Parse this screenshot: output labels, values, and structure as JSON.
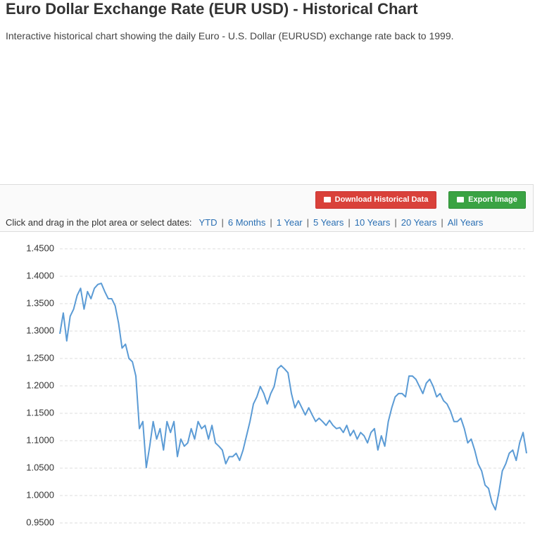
{
  "header": {
    "title": "Euro Dollar Exchange Rate (EUR USD) - Historical Chart",
    "subtitle": "Interactive historical chart showing the daily Euro - U.S. Dollar (EURUSD) exchange rate back to 1999."
  },
  "toolbar": {
    "download_button": "Download Historical Data",
    "export_button": "Export Image",
    "range_label": "Click and drag in the plot area or select dates:",
    "separator": "|",
    "range_options": [
      "YTD",
      "6 Months",
      "1 Year",
      "5 Years",
      "10 Years",
      "20 Years",
      "All Years"
    ]
  },
  "chart_data": {
    "type": "line",
    "ylim": [
      0.95,
      1.45
    ],
    "yticks": [
      {
        "value": 1.45,
        "label": "1.4500"
      },
      {
        "value": 1.4,
        "label": "1.4000"
      },
      {
        "value": 1.35,
        "label": "1.3500"
      },
      {
        "value": 1.3,
        "label": "1.3000"
      },
      {
        "value": 1.25,
        "label": "1.2500"
      },
      {
        "value": 1.2,
        "label": "1.2000"
      },
      {
        "value": 1.15,
        "label": "1.1500"
      },
      {
        "value": 1.1,
        "label": "1.1000"
      },
      {
        "value": 1.05,
        "label": "1.0500"
      },
      {
        "value": 1.0,
        "label": "1.0000"
      },
      {
        "value": 0.95,
        "label": "0.9500"
      }
    ],
    "grid": true,
    "color": "#5b9bd5",
    "values": [
      1.295,
      1.333,
      1.282,
      1.327,
      1.34,
      1.365,
      1.378,
      1.34,
      1.372,
      1.359,
      1.378,
      1.385,
      1.387,
      1.372,
      1.359,
      1.359,
      1.346,
      1.314,
      1.269,
      1.276,
      1.25,
      1.244,
      1.218,
      1.122,
      1.135,
      1.051,
      1.09,
      1.135,
      1.103,
      1.122,
      1.083,
      1.135,
      1.115,
      1.135,
      1.071,
      1.103,
      1.09,
      1.096,
      1.122,
      1.103,
      1.135,
      1.122,
      1.128,
      1.103,
      1.128,
      1.096,
      1.09,
      1.083,
      1.058,
      1.071,
      1.071,
      1.077,
      1.064,
      1.083,
      1.109,
      1.135,
      1.167,
      1.18,
      1.199,
      1.186,
      1.167,
      1.186,
      1.199,
      1.231,
      1.237,
      1.231,
      1.224,
      1.186,
      1.16,
      1.173,
      1.16,
      1.147,
      1.16,
      1.147,
      1.135,
      1.141,
      1.135,
      1.128,
      1.137,
      1.128,
      1.122,
      1.124,
      1.115,
      1.128,
      1.109,
      1.119,
      1.103,
      1.115,
      1.109,
      1.096,
      1.115,
      1.122,
      1.083,
      1.109,
      1.09,
      1.135,
      1.16,
      1.18,
      1.186,
      1.186,
      1.18,
      1.218,
      1.218,
      1.212,
      1.199,
      1.186,
      1.205,
      1.212,
      1.199,
      1.18,
      1.186,
      1.173,
      1.167,
      1.154,
      1.135,
      1.135,
      1.141,
      1.122,
      1.096,
      1.103,
      1.083,
      1.058,
      1.045,
      1.019,
      1.013,
      0.987,
      0.974,
      1.006,
      1.045,
      1.058,
      1.077,
      1.083,
      1.064,
      1.096,
      1.115,
      1.077
    ]
  }
}
